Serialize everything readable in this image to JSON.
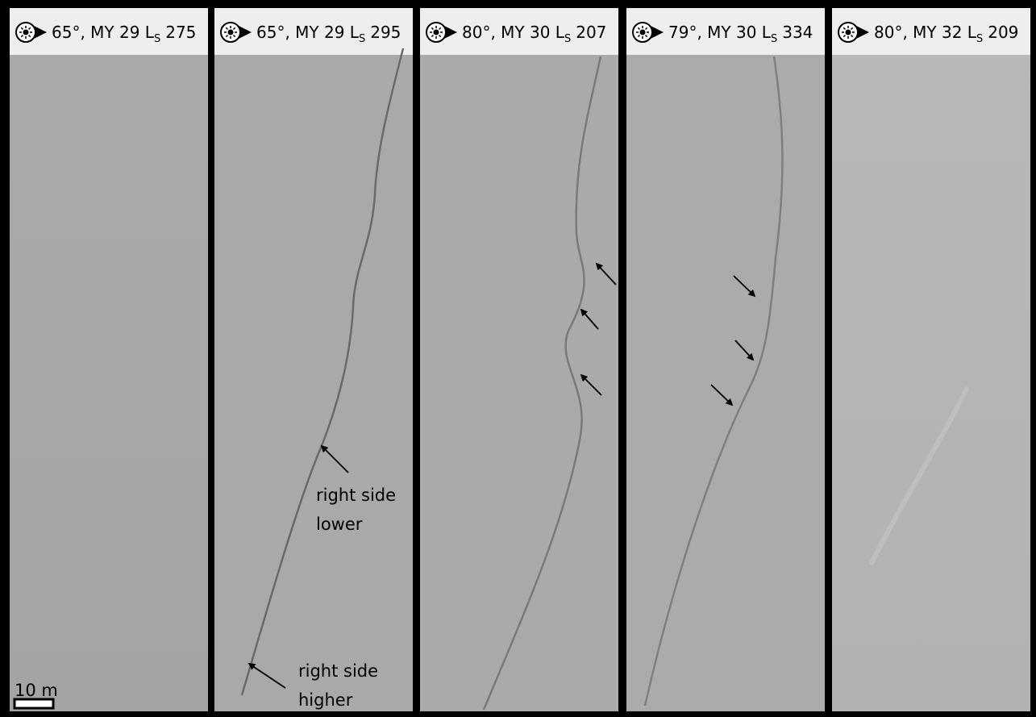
{
  "panels": [
    {
      "prefix": "65°, MY 29 L",
      "sub": "S",
      "suffix": "275"
    },
    {
      "prefix": "65°, MY 29 L",
      "sub": "S",
      "suffix": "295"
    },
    {
      "prefix": "80°, MY 30 L",
      "sub": "S",
      "suffix": "207"
    },
    {
      "prefix": "79°, MY 30 L",
      "sub": "S",
      "suffix": "334"
    },
    {
      "prefix": "80°, MY 32 L",
      "sub": "S",
      "suffix": "209"
    }
  ],
  "annotations": {
    "lower": [
      "right side",
      "lower"
    ],
    "higher": [
      "right side",
      "higher"
    ]
  },
  "scale_bar": "10 m"
}
